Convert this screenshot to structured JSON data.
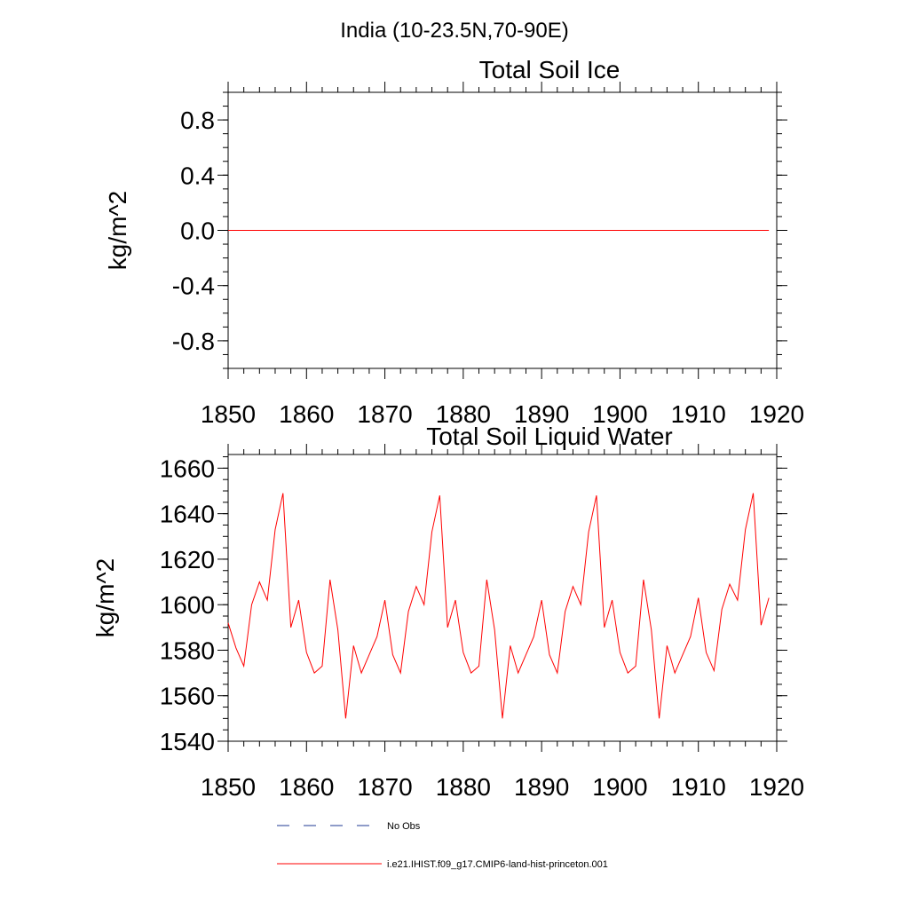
{
  "region_title": "India (10-23.5N,70-90E)",
  "colors": {
    "model_line": "#ff0000",
    "obs_line": "#1f3a93",
    "axis": "#000000"
  },
  "chart_data": [
    {
      "type": "line",
      "title": "Total Soil Ice",
      "xlabel": "",
      "ylabel": "kg/m^2",
      "xlim": [
        1850,
        1920
      ],
      "ylim": [
        -1.0,
        1.0
      ],
      "x_ticks": [
        "1850",
        "1860",
        "1870",
        "1880",
        "1890",
        "1900",
        "1910",
        "1920"
      ],
      "y_ticks": [
        "0.8",
        "0.4",
        "0.0",
        "-0.4",
        "-0.8"
      ],
      "grid": false,
      "series": [
        {
          "name": "i.e21.IHIST.f09_g17.CMIP6-land-hist-princeton.001",
          "color": "#ff0000",
          "x": [
            1850,
            1851,
            1852,
            1853,
            1854,
            1855,
            1856,
            1857,
            1858,
            1859,
            1860,
            1861,
            1862,
            1863,
            1864,
            1865,
            1866,
            1867,
            1868,
            1869,
            1870,
            1871,
            1872,
            1873,
            1874,
            1875,
            1876,
            1877,
            1878,
            1879,
            1880,
            1881,
            1882,
            1883,
            1884,
            1885,
            1886,
            1887,
            1888,
            1889,
            1890,
            1891,
            1892,
            1893,
            1894,
            1895,
            1896,
            1897,
            1898,
            1899,
            1900,
            1901,
            1902,
            1903,
            1904,
            1905,
            1906,
            1907,
            1908,
            1909,
            1910,
            1911,
            1912,
            1913,
            1914,
            1915,
            1916,
            1917,
            1918,
            1919
          ],
          "y": [
            0,
            0,
            0,
            0,
            0,
            0,
            0,
            0,
            0,
            0,
            0,
            0,
            0,
            0,
            0,
            0,
            0,
            0,
            0,
            0,
            0,
            0,
            0,
            0,
            0,
            0,
            0,
            0,
            0,
            0,
            0,
            0,
            0,
            0,
            0,
            0,
            0,
            0,
            0,
            0,
            0,
            0,
            0,
            0,
            0,
            0,
            0,
            0,
            0,
            0,
            0,
            0,
            0,
            0,
            0,
            0,
            0,
            0,
            0,
            0,
            0,
            0,
            0,
            0,
            0,
            0,
            0,
            0,
            0,
            0
          ]
        }
      ]
    },
    {
      "type": "line",
      "title": "Total Soil Liquid Water",
      "xlabel": "",
      "ylabel": "kg/m^2",
      "xlim": [
        1850,
        1920
      ],
      "ylim": [
        1540,
        1666
      ],
      "x_ticks": [
        "1850",
        "1860",
        "1870",
        "1880",
        "1890",
        "1900",
        "1910",
        "1920"
      ],
      "y_ticks": [
        "1660",
        "1640",
        "1620",
        "1600",
        "1580",
        "1560",
        "1540"
      ],
      "grid": false,
      "series": [
        {
          "name": "i.e21.IHIST.f09_g17.CMIP6-land-hist-princeton.001",
          "color": "#ff0000",
          "x": [
            1850,
            1851,
            1852,
            1853,
            1854,
            1855,
            1856,
            1857,
            1858,
            1859,
            1860,
            1861,
            1862,
            1863,
            1864,
            1865,
            1866,
            1867,
            1868,
            1869,
            1870,
            1871,
            1872,
            1873,
            1874,
            1875,
            1876,
            1877,
            1878,
            1879,
            1880,
            1881,
            1882,
            1883,
            1884,
            1885,
            1886,
            1887,
            1888,
            1889,
            1890,
            1891,
            1892,
            1893,
            1894,
            1895,
            1896,
            1897,
            1898,
            1899,
            1900,
            1901,
            1902,
            1903,
            1904,
            1905,
            1906,
            1907,
            1908,
            1909,
            1910,
            1911,
            1912,
            1913,
            1914,
            1915,
            1916,
            1917,
            1918,
            1919
          ],
          "y": [
            1592,
            1581,
            1573,
            1600,
            1610,
            1602,
            1633,
            1649,
            1590,
            1602,
            1579,
            1570,
            1573,
            1611,
            1589,
            1550,
            1582,
            1570,
            1578,
            1586,
            1602,
            1578,
            1570,
            1597,
            1608,
            1600,
            1632,
            1648,
            1590,
            1602,
            1579,
            1570,
            1573,
            1611,
            1589,
            1550,
            1582,
            1570,
            1578,
            1586,
            1602,
            1578,
            1570,
            1597,
            1608,
            1600,
            1632,
            1648,
            1590,
            1602,
            1579,
            1570,
            1573,
            1611,
            1589,
            1550,
            1582,
            1570,
            1578,
            1586,
            1603,
            1579,
            1571,
            1598,
            1609,
            1602,
            1633,
            1649,
            1591,
            1603
          ]
        }
      ]
    }
  ],
  "legend": [
    {
      "label": "No Obs",
      "color": "#1f3a93",
      "style": "dashed"
    },
    {
      "label": "i.e21.IHIST.f09_g17.CMIP6-land-hist-princeton.001",
      "color": "#ff0000",
      "style": "solid"
    }
  ]
}
